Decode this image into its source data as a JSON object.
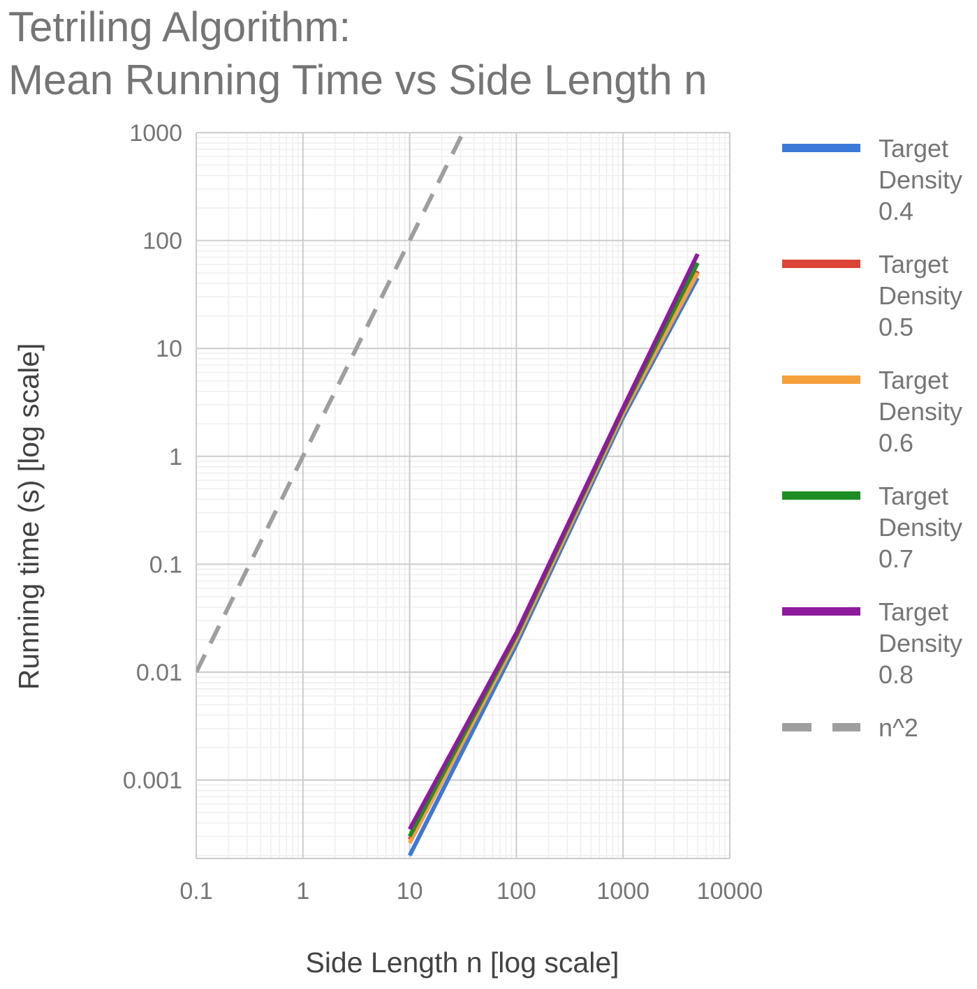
{
  "chart_data": {
    "type": "line",
    "title": [
      "Tetriling Algorithm:",
      "Mean Running Time vs Side Length n"
    ],
    "xlabel": "Side Length n [log scale]",
    "ylabel": "Running time (s) [log scale]",
    "xscale": "log",
    "yscale": "log",
    "xlim": [
      0.1,
      10000
    ],
    "ylim": [
      0.0002,
      1000
    ],
    "xticks": [
      "0.1",
      "1",
      "10",
      "100",
      "1000",
      "10000"
    ],
    "yticks": [
      "0.001",
      "0.01",
      "0.1",
      "1",
      "10",
      "100",
      "1000"
    ],
    "grid": true,
    "legend_position": "right",
    "series": [
      {
        "name": "Target Density 0.4",
        "color": "#3c78d8",
        "dash": false,
        "points": [
          [
            10,
            0.0002
          ],
          [
            100,
            0.018
          ],
          [
            1000,
            2.3
          ],
          [
            5000,
            45
          ]
        ]
      },
      {
        "name": "Target Density 0.5",
        "color": "#db4437",
        "dash": false,
        "points": [
          [
            10,
            0.00028
          ],
          [
            100,
            0.021
          ],
          [
            1000,
            2.5
          ],
          [
            5000,
            52
          ]
        ]
      },
      {
        "name": "Target Density 0.6",
        "color": "#f6a03c",
        "dash": false,
        "points": [
          [
            10,
            0.00026
          ],
          [
            100,
            0.02
          ],
          [
            1000,
            2.5
          ],
          [
            5000,
            50
          ]
        ]
      },
      {
        "name": "Target Density 0.7",
        "color": "#1e8e24",
        "dash": false,
        "points": [
          [
            10,
            0.0003
          ],
          [
            100,
            0.022
          ],
          [
            1000,
            2.7
          ],
          [
            5000,
            62
          ]
        ]
      },
      {
        "name": "Target Density 0.8",
        "color": "#8e1a9e",
        "dash": false,
        "points": [
          [
            10,
            0.00035
          ],
          [
            100,
            0.023
          ],
          [
            1000,
            2.8
          ],
          [
            5000,
            75
          ]
        ]
      },
      {
        "name": "n^2",
        "color": "#9e9e9e",
        "dash": true,
        "points": [
          [
            0.1,
            0.01
          ],
          [
            31.62,
            1000
          ]
        ]
      }
    ]
  }
}
